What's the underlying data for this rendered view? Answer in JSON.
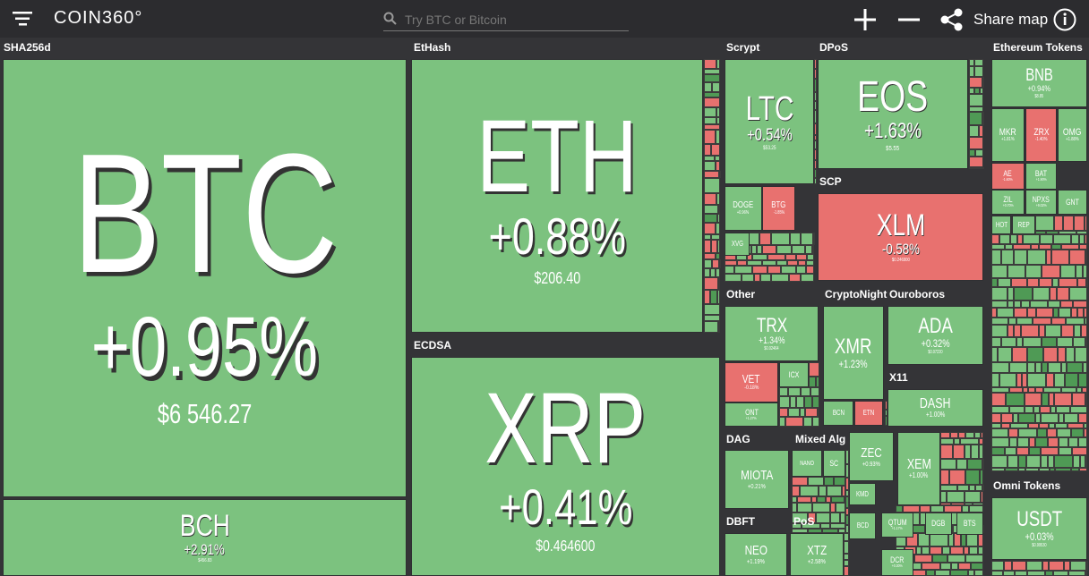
{
  "header": {
    "logo": "COIN360°",
    "search_placeholder": "Try BTC or Bitcoin",
    "share": "Share map"
  },
  "colors": {
    "up": "#7cc27f",
    "down": "#e8716f"
  },
  "sections": [
    {
      "label": "SHA256d",
      "tiles": [
        {
          "symbol": "BTC",
          "change": "+0.95%",
          "price": "$6 546.27",
          "color": "#7cc27f"
        },
        {
          "symbol": "BCH",
          "change": "+2.91%",
          "price": "$456.83",
          "color": "#7cc27f"
        }
      ]
    },
    {
      "label": "EtHash",
      "tiles": [
        {
          "symbol": "ETH",
          "change": "+0.88%",
          "price": "$206.40",
          "color": "#7cc27f"
        }
      ]
    },
    {
      "label": "ECDSA",
      "tiles": [
        {
          "symbol": "XRP",
          "change": "+0.41%",
          "price": "$0.464600",
          "color": "#7cc27f"
        }
      ]
    },
    {
      "label": "Scrypt",
      "tiles": [
        {
          "symbol": "LTC",
          "change": "+0.54%",
          "price": "$53.25",
          "color": "#7cc27f"
        },
        {
          "symbol": "DOGE",
          "change": "+0.96%",
          "color": "#7cc27f"
        },
        {
          "symbol": "BTG",
          "change": "-1.85%",
          "color": "#e8716f"
        },
        {
          "symbol": "XVG",
          "color": "#7cc27f"
        }
      ]
    },
    {
      "label": "DPoS",
      "tiles": [
        {
          "symbol": "EOS",
          "change": "+1.63%",
          "price": "$5.55",
          "color": "#7cc27f"
        }
      ]
    },
    {
      "label": "SCP",
      "tiles": [
        {
          "symbol": "XLM",
          "change": "-0.58%",
          "price": "$0.246900",
          "color": "#e8716f"
        }
      ]
    },
    {
      "label": "Other",
      "tiles": [
        {
          "symbol": "TRX",
          "change": "+1.34%",
          "price": "$0.02464",
          "color": "#7cc27f"
        },
        {
          "symbol": "VET",
          "change": "-0.18%",
          "color": "#e8716f"
        },
        {
          "symbol": "ICX",
          "color": "#7cc27f"
        },
        {
          "symbol": "ONT",
          "change": "+1.27%",
          "color": "#7cc27f"
        }
      ]
    },
    {
      "label": "CryptoNight",
      "tiles": [
        {
          "symbol": "XMR",
          "change": "+1.23%",
          "color": "#7cc27f"
        },
        {
          "symbol": "BCN",
          "color": "#7cc27f"
        },
        {
          "symbol": "ETN",
          "color": "#e8716f"
        }
      ]
    },
    {
      "label": "Ouroboros",
      "tiles": [
        {
          "symbol": "ADA",
          "change": "+0.32%",
          "price": "$0.07220",
          "color": "#7cc27f"
        }
      ]
    },
    {
      "label": "X11",
      "tiles": [
        {
          "symbol": "DASH",
          "change": "+1.00%",
          "color": "#7cc27f"
        }
      ]
    },
    {
      "label": "DAG",
      "tiles": [
        {
          "symbol": "MIOTA",
          "change": "+0.21%",
          "color": "#7cc27f"
        }
      ]
    },
    {
      "label": "Mixed Alg ...",
      "tiles": [
        {
          "symbol": "NANO",
          "color": "#7cc27f"
        },
        {
          "symbol": "SC",
          "color": "#7cc27f"
        }
      ]
    },
    {
      "label": "DBFT",
      "tiles": [
        {
          "symbol": "NEO",
          "change": "+1.19%",
          "color": "#7cc27f"
        }
      ]
    },
    {
      "label": "PoS",
      "tiles": [
        {
          "symbol": "XTZ",
          "change": "+2.58%",
          "color": "#7cc27f"
        }
      ]
    },
    {
      "label": "Ethereum Tokens",
      "tiles": [
        {
          "symbol": "BNB",
          "change": "+0.94%",
          "price": "$8.85",
          "color": "#7cc27f"
        },
        {
          "symbol": "MKR",
          "change": "+1.81%",
          "color": "#7cc27f"
        },
        {
          "symbol": "ZRX",
          "change": "-1.40%",
          "color": "#e8716f"
        },
        {
          "symbol": "OMG",
          "change": "+1.88%",
          "color": "#7cc27f"
        },
        {
          "symbol": "AE",
          "change": "-1.60%",
          "color": "#e8716f"
        },
        {
          "symbol": "BAT",
          "change": "+1.90%",
          "color": "#7cc27f"
        },
        {
          "symbol": "ZIL",
          "change": "+0.70%",
          "color": "#7cc27f"
        },
        {
          "symbol": "NPXS",
          "change": "+9.02%",
          "color": "#7cc27f"
        },
        {
          "symbol": "GNT",
          "color": "#7cc27f"
        },
        {
          "symbol": "HOT",
          "color": "#7cc27f"
        },
        {
          "symbol": "REP",
          "color": "#7cc27f"
        }
      ]
    },
    {
      "label": "Omni Tokens",
      "tiles": [
        {
          "symbol": "USDT",
          "change": "+0.03%",
          "price": "$0.99530",
          "color": "#7cc27f"
        }
      ]
    }
  ],
  "other_tiles": [
    {
      "symbol": "ZEC",
      "change": "+0.93%",
      "color": "#7cc27f"
    },
    {
      "symbol": "XEM",
      "change": "+1.00%",
      "color": "#7cc27f"
    },
    {
      "symbol": "QTUM",
      "change": "+1.17%",
      "color": "#7cc27f"
    },
    {
      "symbol": "DCR",
      "change": "+0.30%",
      "color": "#7cc27f"
    },
    {
      "symbol": "DGB",
      "color": "#7cc27f"
    },
    {
      "symbol": "BTS",
      "color": "#7cc27f"
    },
    {
      "symbol": "BCD",
      "color": "#7cc27f"
    },
    {
      "symbol": "KMD",
      "color": "#7cc27f"
    }
  ]
}
